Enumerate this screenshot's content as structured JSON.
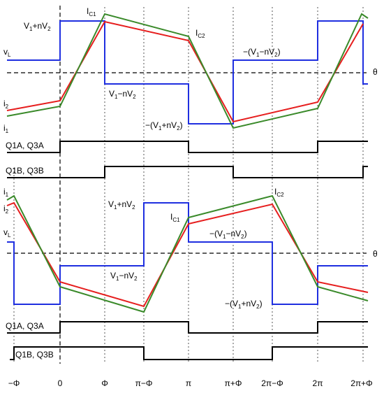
{
  "colors": {
    "vL": "#1f2fe0",
    "i2": "#e61e1e",
    "i1": "#3a8a2a",
    "gate": "#000000",
    "grid": "#555555"
  },
  "x_ticks": [
    "−Φ",
    "0",
    "Φ",
    "π−Φ",
    "π",
    "π+Φ",
    "2π−Φ",
    "2π",
    "2π+Φ"
  ],
  "theta_label": "θ",
  "top": {
    "vL_label": "v",
    "vL_sub": "L",
    "i2_label": "i",
    "i2_sub": "2",
    "i1_label": "i",
    "i1_sub": "1",
    "ic1": {
      "main": "I",
      "sub": "C1"
    },
    "ic2": {
      "main": "I",
      "sub": "C2"
    },
    "annot_v1_plus": {
      "a": "V",
      "s1": "1",
      "b": "+nV",
      "s2": "2"
    },
    "annot_v1_minus": {
      "a": "V",
      "s1": "1",
      "b": "−nV",
      "s2": "2"
    },
    "annot_neg_v1_minus": {
      "a": "−(V",
      "s1": "1",
      "b": "−nV",
      "s2": "2",
      "c": ")"
    },
    "annot_neg_v1_plus": {
      "a": "−(V",
      "s1": "1",
      "b": "+nV",
      "s2": "2",
      "c": ")"
    },
    "gate_a": "Q1A, Q3A",
    "gate_b": "Q1B, Q3B"
  },
  "bottom": {
    "vL_label": "v",
    "vL_sub": "L",
    "i2_label": "i",
    "i2_sub": "2",
    "i1_label": "i",
    "i1_sub": "1",
    "ic1": {
      "main": "I",
      "sub": "C1"
    },
    "ic2": {
      "main": "I",
      "sub": "C2"
    },
    "annot_v1_plus": {
      "a": "V",
      "s1": "1",
      "b": "+nV",
      "s2": "2"
    },
    "annot_v1_minus": {
      "a": "V",
      "s1": "1",
      "b": "−nV",
      "s2": "2"
    },
    "annot_neg_v1_minus": {
      "a": "−(V",
      "s1": "1",
      "b": "−nV",
      "s2": "2",
      "c": ")"
    },
    "annot_neg_v1_plus": {
      "a": "−(V",
      "s1": "1",
      "b": "+nV",
      "s2": "2",
      "c": ")"
    },
    "gate_a": "Q1A, Q3A",
    "gate_b": "Q1B, Q3B"
  }
}
